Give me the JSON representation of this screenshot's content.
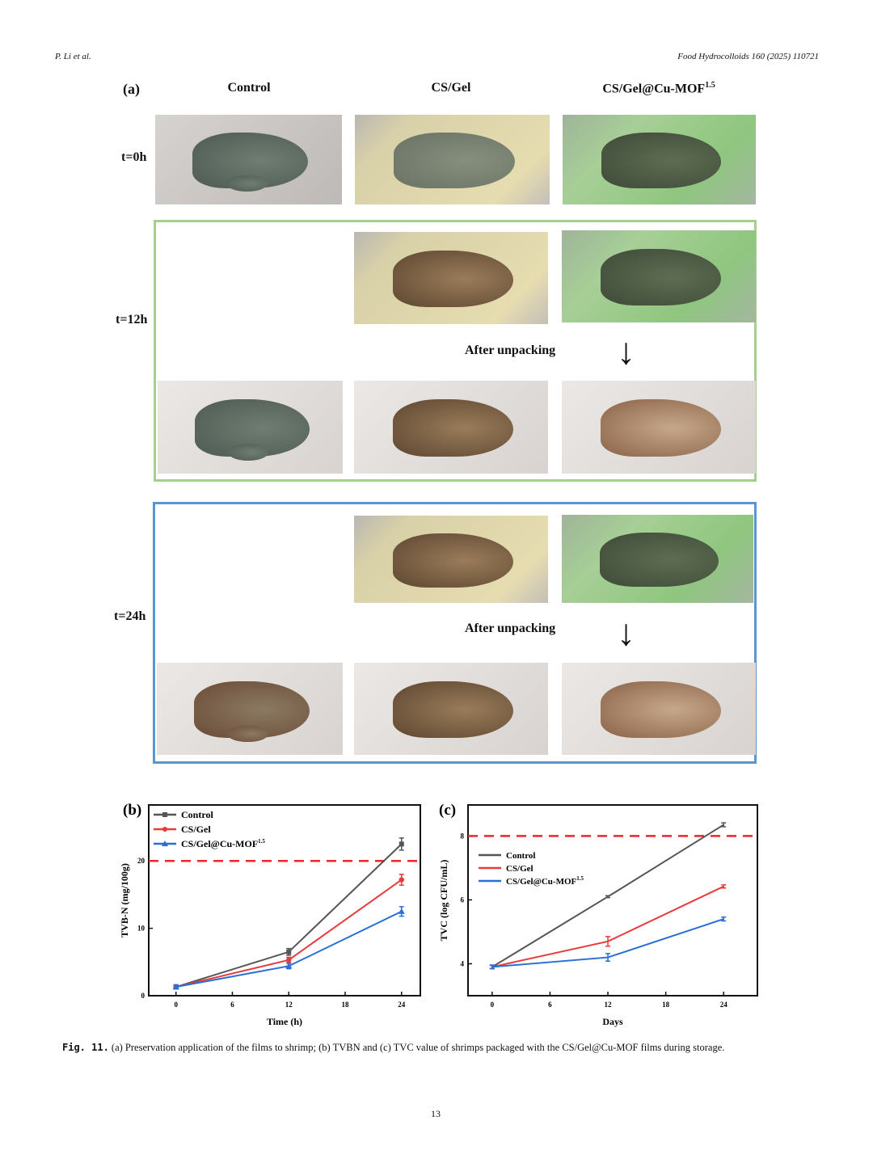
{
  "header": {
    "authors": "P. Li et al.",
    "journal": "Food Hydrocolloids 160 (2025) 110721"
  },
  "panel_a": {
    "label": "(a)",
    "columns": [
      "Control",
      "CS/Gel",
      "CS/Gel@Cu-MOF"
    ],
    "column_sup": "1.5",
    "rows": [
      "t=0h",
      "t=12h",
      "t=24h"
    ],
    "after_unpacking": "After unpacking"
  },
  "chart_data": [
    {
      "type": "line",
      "panel_label": "(b)",
      "title": "",
      "xlabel": "Time (h)",
      "ylabel": "TVB-N (mg/100g)",
      "x": [
        0,
        12,
        24
      ],
      "xticks": [
        "0",
        "6",
        "12",
        "18",
        "24"
      ],
      "yticks": [
        "0",
        "10",
        "20"
      ],
      "xlim": [
        -2.9,
        26
      ],
      "ylim": [
        0,
        28.3
      ],
      "threshold": 20,
      "legend_placement": "top-left",
      "markers": true,
      "series": [
        {
          "name": "Control",
          "color": "#555555",
          "values": [
            1.3,
            6.5,
            22.5
          ],
          "errors": [
            0.3,
            0.5,
            0.9
          ]
        },
        {
          "name": "CS/Gel",
          "color": "#e83a3a",
          "values": [
            1.3,
            5.3,
            17.2
          ],
          "errors": [
            0.3,
            0.4,
            0.8
          ]
        },
        {
          "name": "CS/Gel@Cu-MOF",
          "sup": "1.5",
          "color": "#2a6fd6",
          "values": [
            1.3,
            4.4,
            12.5
          ],
          "errors": [
            0.3,
            0.4,
            0.7
          ]
        }
      ]
    },
    {
      "type": "line",
      "panel_label": "(c)",
      "title": "",
      "xlabel": "Days",
      "ylabel": "TVC (log CFU/mL)",
      "x": [
        0,
        12,
        24
      ],
      "xticks": [
        "0",
        "6",
        "12",
        "18",
        "24"
      ],
      "yticks": [
        "4",
        "6",
        "8"
      ],
      "xlim": [
        -2.5,
        27.5
      ],
      "ylim": [
        3.0,
        8.97
      ],
      "threshold": 8,
      "legend_placement": "center-left",
      "markers": false,
      "series": [
        {
          "name": "Control",
          "color": "#555555",
          "values": [
            3.9,
            6.1,
            8.35
          ],
          "errors": [
            0.05,
            0.03,
            0.06
          ]
        },
        {
          "name": "CS/Gel",
          "color": "#e83a3a",
          "values": [
            3.9,
            4.7,
            6.42
          ],
          "errors": [
            0.05,
            0.15,
            0.05
          ]
        },
        {
          "name": "CS/Gel@Cu-MOF",
          "sup": "1.5",
          "color": "#2a6fd6",
          "values": [
            3.9,
            4.2,
            5.4
          ],
          "errors": [
            0.06,
            0.12,
            0.06
          ]
        }
      ]
    }
  ],
  "caption": {
    "label": "Fig. 11.",
    "text": "(a) Preservation application of the films to shrimp; (b) TVBN and (c) TVC value of shrimps packaged with the CS/Gel@Cu-MOF films during storage."
  },
  "page_number": "13"
}
